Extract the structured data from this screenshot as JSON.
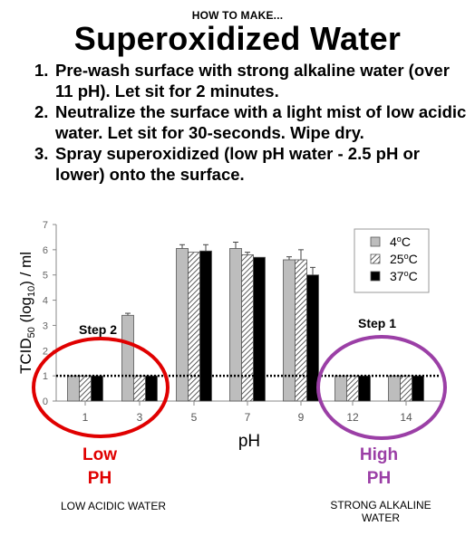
{
  "header": {
    "kicker": "HOW TO MAKE...",
    "title": "Superoxidized Water"
  },
  "steps": [
    {
      "num": "1.",
      "text": "Pre-wash surface with strong alkaline water (over 11 pH). Let sit for 2 minutes."
    },
    {
      "num": "2.",
      "text": "Neutralize the surface with a light mist of low acidic water. Let sit for 30-seconds. Wipe dry."
    },
    {
      "num": "3.",
      "text": "Spray superoxidized (low pH water - 2.5 pH or lower) onto the surface."
    }
  ],
  "chart_data": {
    "type": "bar",
    "xlabel": "pH",
    "ylabel": "TCID50 (log10) / ml",
    "ylabel_parts": {
      "main": "TCID",
      "sub1": "50",
      "mid": " (log",
      "sub2": "10",
      "end": ") / ml"
    },
    "categories": [
      "1",
      "3",
      "5",
      "7",
      "9",
      "12",
      "14"
    ],
    "ylim": [
      0,
      7
    ],
    "yticks": [
      "0",
      "1",
      "2",
      "3",
      "4",
      "5",
      "6",
      "7"
    ],
    "threshold": 1,
    "legend_position": "top-right",
    "series": [
      {
        "name": "4°C",
        "sup": "o",
        "unit": "C",
        "fill": "#bdbdbd",
        "pattern": "solid",
        "values": [
          1.0,
          3.4,
          6.05,
          6.05,
          5.6,
          1.0,
          1.0
        ],
        "errors": [
          0,
          0.08,
          0.15,
          0.25,
          0.12,
          0,
          0
        ]
      },
      {
        "name": "25°C",
        "sup": "o",
        "unit": "C",
        "fill": "#ffffff",
        "pattern": "hatch",
        "values": [
          1.0,
          1.0,
          5.9,
          5.8,
          5.6,
          1.0,
          1.0
        ],
        "errors": [
          0,
          0,
          0,
          0.1,
          0.4,
          0,
          0
        ]
      },
      {
        "name": "37°C",
        "sup": "o",
        "unit": "C",
        "fill": "#000000",
        "pattern": "solid",
        "values": [
          1.0,
          1.0,
          5.95,
          5.7,
          5.0,
          1.0,
          1.0
        ],
        "errors": [
          0,
          0,
          0.25,
          0,
          0.3,
          0,
          0
        ]
      }
    ],
    "annotations": [
      {
        "label": "Step 2",
        "color": "#e00000",
        "group": "acidic"
      },
      {
        "label": "Step 1",
        "color": "#9b3fa6",
        "group": "alkaline"
      }
    ]
  },
  "sides": {
    "low": {
      "line1": "Low",
      "line2": "PH",
      "color": "#e00000",
      "caption": "LOW ACIDIC WATER"
    },
    "high": {
      "line1": "High",
      "line2": "PH",
      "color": "#9b3fa6",
      "caption_line1": "STRONG ALKALINE",
      "caption_line2": "WATER"
    }
  }
}
